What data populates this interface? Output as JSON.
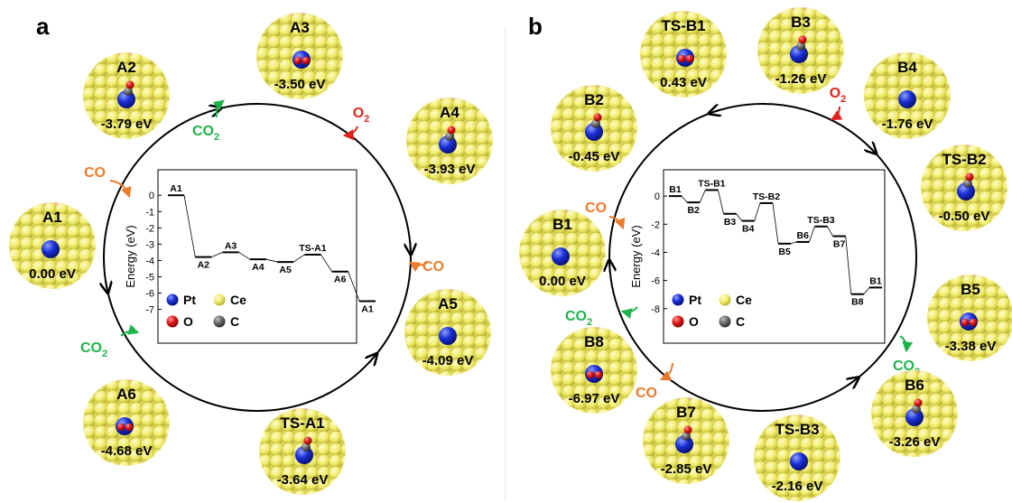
{
  "panels": [
    {
      "id": "a",
      "label": "a",
      "states": [
        {
          "name": "A1",
          "energy": "0.00 eV"
        },
        {
          "name": "A2",
          "energy": "-3.79 eV"
        },
        {
          "name": "A3",
          "energy": "-3.50 eV"
        },
        {
          "name": "A4",
          "energy": "-3.93 eV"
        },
        {
          "name": "A5",
          "energy": "-4.09 eV"
        },
        {
          "name": "TS-A1",
          "energy": "-3.64 eV"
        },
        {
          "name": "A6",
          "energy": "-4.68 eV"
        }
      ],
      "species": [
        {
          "base": "CO",
          "sub": ""
        },
        {
          "base": "CO",
          "sub": "2"
        },
        {
          "base": "O",
          "sub": "2"
        },
        {
          "base": "CO",
          "sub": ""
        },
        {
          "base": "CO",
          "sub": "2"
        }
      ],
      "chart_data": {
        "type": "line",
        "subtype": "energy-profile",
        "ylabel": "Energy (eV)",
        "ylim": [
          -7.3,
          0.9
        ],
        "yticks": [
          0,
          -1,
          -2,
          -3,
          -4,
          -5,
          -6,
          -7
        ],
        "grid": false,
        "levels": [
          {
            "label": "A1",
            "value": 0.0
          },
          {
            "label": "A2",
            "value": -3.79
          },
          {
            "label": "A3",
            "value": -3.5
          },
          {
            "label": "A4",
            "value": -3.93
          },
          {
            "label": "A5",
            "value": -4.09
          },
          {
            "label": "TS-A1",
            "value": -3.64
          },
          {
            "label": "A6",
            "value": -4.68
          },
          {
            "label": "A1",
            "value": -6.5
          }
        ],
        "legend": [
          {
            "label": "Pt",
            "color": "#1a2fd6"
          },
          {
            "label": "Ce",
            "color": "#f0ec6a"
          },
          {
            "label": "O",
            "color": "#e01b1b"
          },
          {
            "label": "C",
            "color": "#6e6e6e"
          }
        ]
      }
    },
    {
      "id": "b",
      "label": "b",
      "states": [
        {
          "name": "B1",
          "energy": "0.00 eV"
        },
        {
          "name": "B2",
          "energy": "-0.45 eV"
        },
        {
          "name": "TS-B1",
          "energy": "0.43 eV"
        },
        {
          "name": "B3",
          "energy": "-1.26 eV"
        },
        {
          "name": "B4",
          "energy": "-1.76 eV"
        },
        {
          "name": "TS-B2",
          "energy": "-0.50 eV"
        },
        {
          "name": "B5",
          "energy": "-3.38 eV"
        },
        {
          "name": "B6",
          "energy": "-3.26 eV"
        },
        {
          "name": "TS-B3",
          "energy": "-2.16 eV"
        },
        {
          "name": "B7",
          "energy": "-2.85 eV"
        },
        {
          "name": "B8",
          "energy": "-6.97 eV"
        }
      ],
      "species": [
        {
          "base": "CO",
          "sub": ""
        },
        {
          "base": "O",
          "sub": "2"
        },
        {
          "base": "CO",
          "sub": "2"
        },
        {
          "base": "CO",
          "sub": ""
        },
        {
          "base": "CO",
          "sub": "2"
        }
      ],
      "chart_data": {
        "type": "line",
        "subtype": "energy-profile",
        "ylabel": "Energy (eV)",
        "ylim": [
          -8.4,
          1.1
        ],
        "yticks": [
          0,
          -2,
          -4,
          -6,
          -8
        ],
        "grid": false,
        "levels": [
          {
            "label": "B1",
            "value": 0.0
          },
          {
            "label": "B2",
            "value": -0.45
          },
          {
            "label": "TS-B1",
            "value": 0.43
          },
          {
            "label": "B3",
            "value": -1.26
          },
          {
            "label": "B4",
            "value": -1.76
          },
          {
            "label": "TS-B2",
            "value": -0.5
          },
          {
            "label": "B5",
            "value": -3.38
          },
          {
            "label": "B6",
            "value": -3.26
          },
          {
            "label": "TS-B3",
            "value": -2.16
          },
          {
            "label": "B7",
            "value": -2.85
          },
          {
            "label": "B8",
            "value": -6.97
          },
          {
            "label": "B1",
            "value": -6.5
          }
        ],
        "legend": [
          {
            "label": "Pt",
            "color": "#1a2fd6"
          },
          {
            "label": "Ce",
            "color": "#f0ec6a"
          },
          {
            "label": "O",
            "color": "#e01b1b"
          },
          {
            "label": "C",
            "color": "#6e6e6e"
          }
        ]
      }
    }
  ],
  "colors": {
    "ce": "#f0ec6a",
    "o": "#e01b1b",
    "pt": "#1a2fd6",
    "c": "#6e6e6e",
    "co": "#ec7a2b",
    "co2": "#1fb24a",
    "o2": "#e0241b"
  }
}
